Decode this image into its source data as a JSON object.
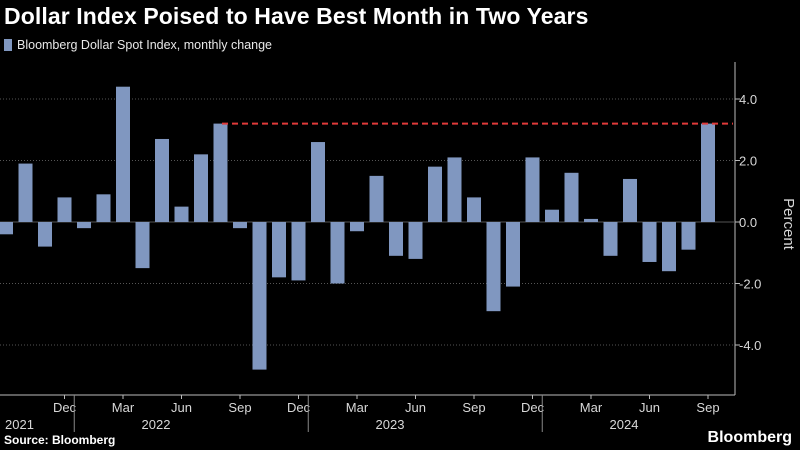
{
  "header": {
    "title": "Dollar Index Poised to Have Best Month in Two Years",
    "legend_label": "Bloomberg Dollar Spot Index, monthly change"
  },
  "footer": {
    "source": "Source: Bloomberg",
    "brand": "Bloomberg"
  },
  "colors": {
    "background": "#000000",
    "bar": "#8097c0",
    "reference_line": "#e03a3a",
    "grid": "#555555",
    "text": "#d8d8d8"
  },
  "chart_data": {
    "type": "bar",
    "title": "Dollar Index Poised to Have Best Month in Two Years",
    "ylabel": "Percent",
    "ylim": [
      -5.0,
      5.2
    ],
    "yticks": [
      -4.0,
      -2.0,
      0.0,
      2.0,
      4.0
    ],
    "ytick_labels": [
      "-4.0",
      "-2.0",
      "0.0",
      "2.0",
      "4.0"
    ],
    "reference_value": 3.2,
    "categories": [
      "Sep 2021",
      "Oct 2021",
      "Nov 2021",
      "Dec 2021",
      "Jan 2022",
      "Feb 2022",
      "Mar 2022",
      "Apr 2022",
      "May 2022",
      "Jun 2022",
      "Jul 2022",
      "Aug 2022",
      "Sep 2022",
      "Oct 2022",
      "Nov 2022",
      "Dec 2022",
      "Jan 2023",
      "Feb 2023",
      "Mar 2023",
      "Apr 2023",
      "May 2023",
      "Jun 2023",
      "Jul 2023",
      "Aug 2023",
      "Sep 2023",
      "Oct 2023",
      "Nov 2023",
      "Dec 2023",
      "Jan 2024",
      "Feb 2024",
      "Mar 2024",
      "Apr 2024",
      "May 2024",
      "Jun 2024",
      "Jul 2024",
      "Aug 2024",
      "Sep 2024",
      "Oct 2024"
    ],
    "values": [
      -0.4,
      1.9,
      -0.8,
      0.8,
      -0.2,
      0.9,
      4.4,
      -1.5,
      2.7,
      0.5,
      2.2,
      3.2,
      -0.2,
      -4.8,
      -1.8,
      -1.9,
      2.6,
      -2.0,
      -0.3,
      1.5,
      -1.1,
      -1.2,
      1.8,
      2.1,
      0.8,
      -2.9,
      -2.1,
      2.1,
      0.4,
      1.6,
      0.1,
      -1.1,
      1.4,
      -1.3,
      -1.6,
      -0.9,
      3.2,
      0
    ],
    "month_ticks": [
      {
        "index": 3,
        "label": "Dec"
      },
      {
        "index": 6,
        "label": "Mar"
      },
      {
        "index": 9,
        "label": "Jun"
      },
      {
        "index": 12,
        "label": "Sep"
      },
      {
        "index": 15,
        "label": "Dec"
      },
      {
        "index": 18,
        "label": "Mar"
      },
      {
        "index": 21,
        "label": "Jun"
      },
      {
        "index": 24,
        "label": "Sep"
      },
      {
        "index": 27,
        "label": "Dec"
      },
      {
        "index": 30,
        "label": "Mar"
      },
      {
        "index": 33,
        "label": "Jun"
      },
      {
        "index": 36,
        "label": "Sep"
      }
    ],
    "year_labels": [
      {
        "index": 1,
        "label": "2021"
      },
      {
        "index": 8,
        "label": "2022"
      },
      {
        "index": 20,
        "label": "2023"
      },
      {
        "index": 32,
        "label": "2024"
      }
    ],
    "year_separators": [
      4,
      16,
      28
    ]
  }
}
